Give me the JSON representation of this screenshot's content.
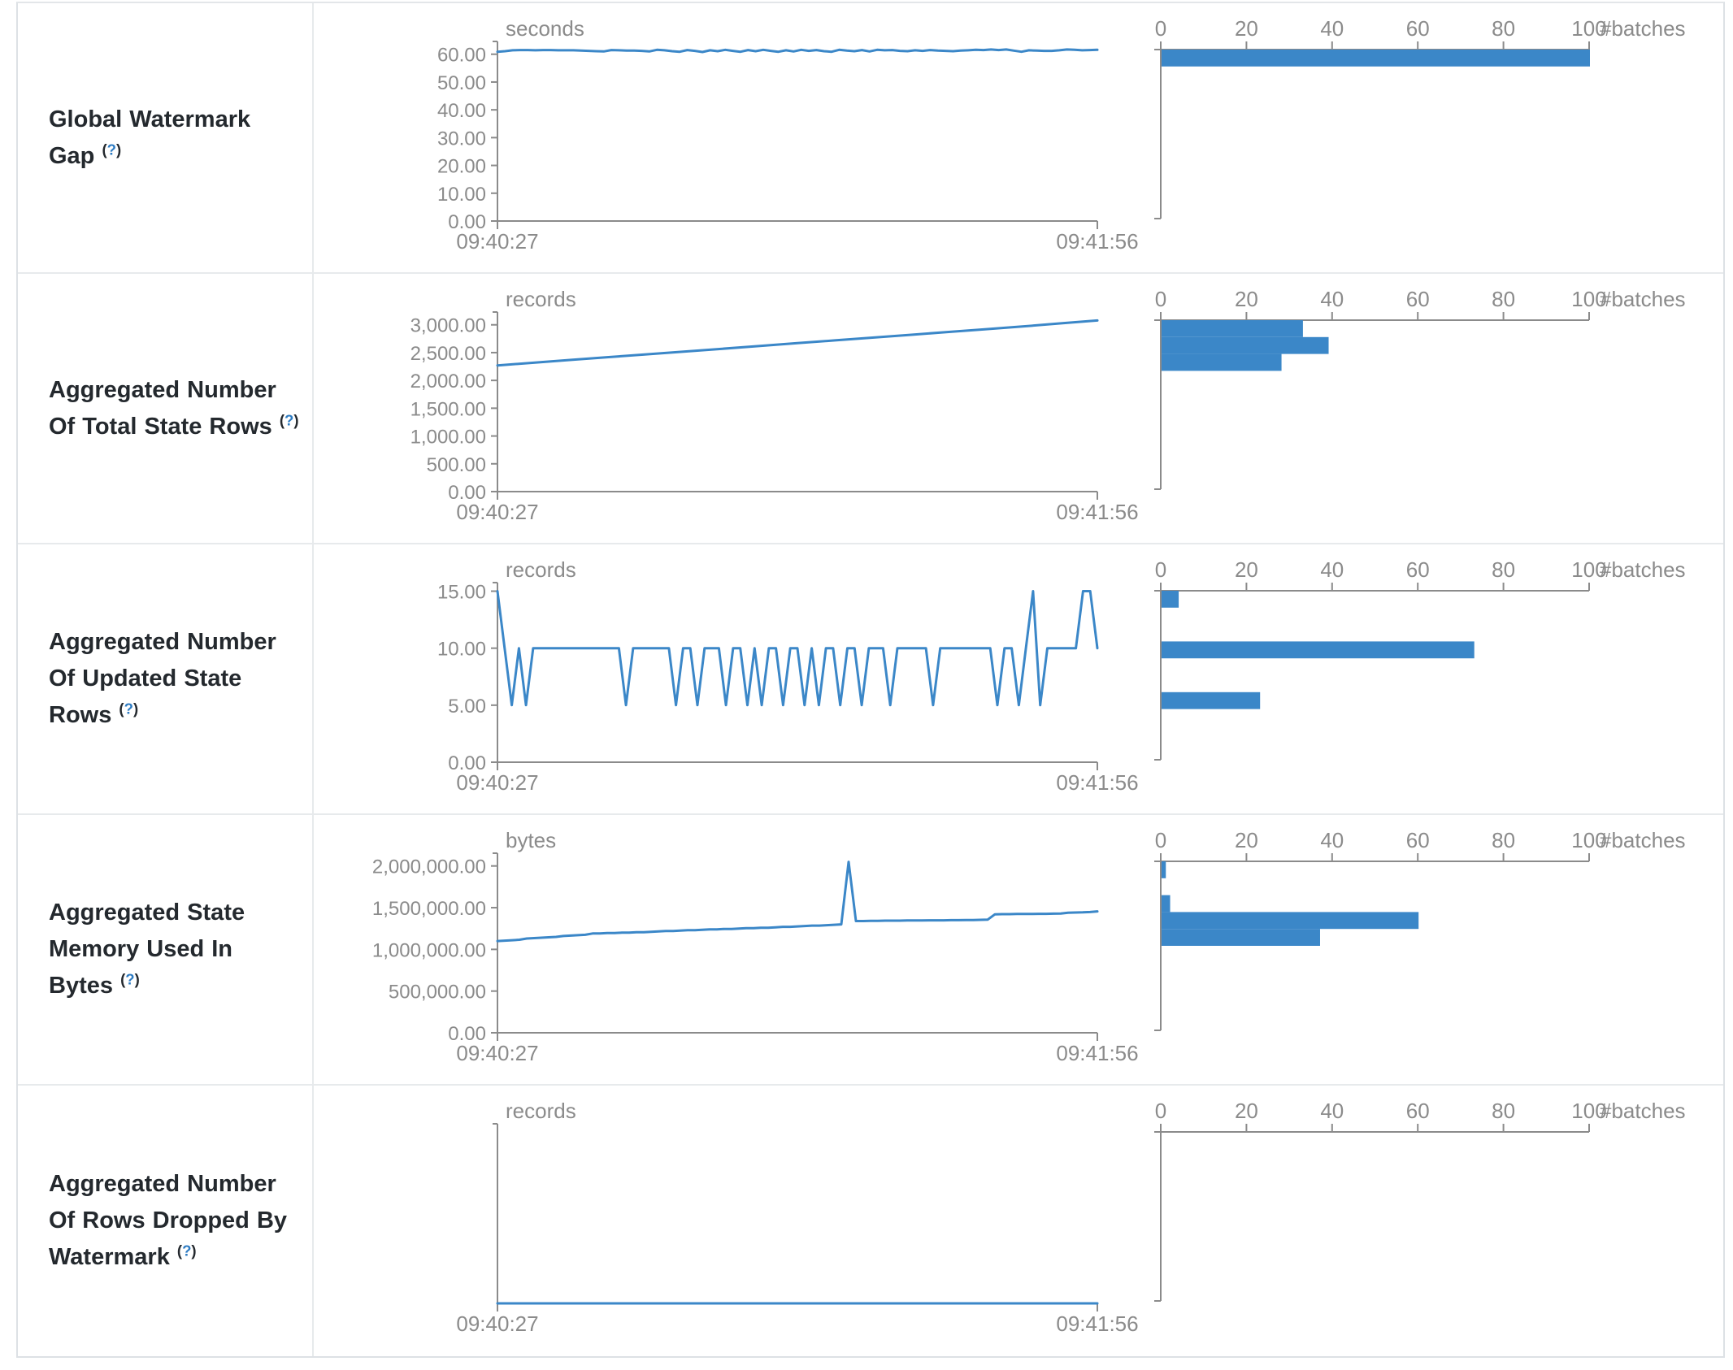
{
  "colors": {
    "line": "#3b87c8",
    "bar": "#3b87c8",
    "axis": "#8b8b8b",
    "tick_text": "#8b8b8b",
    "label_text": "#24292e",
    "help_link": "#2e7cc3",
    "border": "#e7eaec",
    "background": "#ffffff"
  },
  "help": {
    "open": "(",
    "q": "?",
    "close": ")"
  },
  "x_axis": {
    "start": "09:40:27",
    "end": "09:41:56"
  },
  "hist_axis": {
    "ticks": [
      0,
      20,
      40,
      60,
      80,
      100
    ],
    "label": "#batches",
    "max": 100
  },
  "chart_data": [
    {
      "row_label": "Global Watermark Gap",
      "timeline": {
        "type": "line",
        "unit": "seconds",
        "ylim": [
          0,
          64.6
        ],
        "x_range": [
          "09:40:27",
          "09:41:56"
        ],
        "y_ticks": [
          {
            "v": 60,
            "label": "60.00"
          },
          {
            "v": 50,
            "label": "50.00"
          },
          {
            "v": 40,
            "label": "40.00"
          },
          {
            "v": 30,
            "label": "30.00"
          },
          {
            "v": 20,
            "label": "20.00"
          },
          {
            "v": 10,
            "label": "10.00"
          },
          {
            "v": 0,
            "label": "0.00"
          }
        ],
        "values": [
          60.9,
          61.1,
          61.4,
          61.5,
          61.5,
          61.4,
          61.5,
          61.5,
          61.4,
          61.4,
          61.4,
          61.3,
          61.2,
          61.1,
          61.0,
          61.5,
          61.4,
          61.3,
          61.3,
          61.2,
          61.0,
          61.6,
          61.4,
          61.1,
          60.9,
          61.5,
          61.2,
          60.8,
          61.4,
          61.1,
          61.6,
          61.2,
          60.9,
          61.5,
          61.1,
          61.6,
          61.2,
          60.9,
          61.4,
          61.0,
          61.6,
          61.2,
          61.5,
          61.1,
          60.9,
          61.6,
          61.3,
          61.1,
          61.5,
          61.0,
          61.6,
          61.4,
          61.5,
          61.2,
          61.1,
          61.4,
          61.2,
          61.5,
          61.3,
          61.2,
          61.1,
          61.3,
          61.4,
          61.6,
          61.5,
          61.7,
          61.5,
          61.7,
          61.3,
          60.9,
          61.4,
          61.3,
          61.2,
          61.2,
          61.4,
          61.7,
          61.6,
          61.4,
          61.5,
          61.6
        ]
      },
      "histogram": {
        "type": "bar",
        "orientation": "horizontal",
        "xlabel": "#batches",
        "xlim": [
          0,
          100
        ],
        "bins": [
          {
            "lo": 58.14,
            "hi": 64.6,
            "count": 100
          }
        ]
      }
    },
    {
      "row_label": "Aggregated Number Of Total State Rows",
      "timeline": {
        "type": "line",
        "unit": "records",
        "ylim": [
          0,
          3230
        ],
        "x_range": [
          "09:40:27",
          "09:41:56"
        ],
        "y_ticks": [
          {
            "v": 3000,
            "label": "3,000.00"
          },
          {
            "v": 2500,
            "label": "2,500.00"
          },
          {
            "v": 2000,
            "label": "2,000.00"
          },
          {
            "v": 1500,
            "label": "1,500.00"
          },
          {
            "v": 1000,
            "label": "1,000.00"
          },
          {
            "v": 500,
            "label": "500.00"
          },
          {
            "v": 0,
            "label": "0.00"
          }
        ],
        "values": [
          2270,
          2320,
          2370,
          2420,
          2470,
          2520,
          2570,
          2620,
          2670,
          2720,
          2770,
          2820,
          2870,
          2920,
          2970,
          3025,
          3078
        ]
      },
      "histogram": {
        "type": "bar",
        "orientation": "horizontal",
        "xlabel": "#batches",
        "xlim": [
          0,
          100
        ],
        "bins": [
          {
            "lo": 2907,
            "hi": 3230,
            "count": 33
          },
          {
            "lo": 2584,
            "hi": 2907,
            "count": 39
          },
          {
            "lo": 2261,
            "hi": 2584,
            "count": 28
          }
        ]
      }
    },
    {
      "row_label": "Aggregated Number Of Updated State Rows",
      "timeline": {
        "type": "line",
        "unit": "records",
        "ylim": [
          0,
          15.75
        ],
        "x_range": [
          "09:40:27",
          "09:41:56"
        ],
        "y_ticks": [
          {
            "v": 15,
            "label": "15.00"
          },
          {
            "v": 10,
            "label": "10.00"
          },
          {
            "v": 5,
            "label": "5.00"
          },
          {
            "v": 0,
            "label": "0.00"
          }
        ],
        "values": [
          15,
          10,
          5,
          10,
          5,
          10,
          10,
          10,
          10,
          10,
          10,
          10,
          10,
          10,
          10,
          10,
          10,
          10,
          5,
          10,
          10,
          10,
          10,
          10,
          10,
          5,
          10,
          10,
          5,
          10,
          10,
          10,
          5,
          10,
          10,
          5,
          10,
          5,
          10,
          10,
          5,
          10,
          10,
          5,
          10,
          5,
          10,
          10,
          5,
          10,
          10,
          5,
          10,
          10,
          10,
          5,
          10,
          10,
          10,
          10,
          10,
          5,
          10,
          10,
          10,
          10,
          10,
          10,
          10,
          10,
          5,
          10,
          10,
          5,
          10,
          15,
          5,
          10,
          10,
          10,
          10,
          10,
          15,
          15,
          10
        ]
      },
      "histogram": {
        "type": "bar",
        "orientation": "horizontal",
        "xlabel": "#batches",
        "xlim": [
          0,
          100
        ],
        "bins": [
          {
            "lo": 14.175,
            "hi": 15.75,
            "count": 4
          },
          {
            "lo": 9.45,
            "hi": 11.025,
            "count": 73
          },
          {
            "lo": 4.725,
            "hi": 6.3,
            "count": 23
          }
        ]
      }
    },
    {
      "row_label": "Aggregated State Memory Used In Bytes",
      "timeline": {
        "type": "line",
        "unit": "bytes",
        "ylim": [
          0,
          2153000
        ],
        "x_range": [
          "09:40:27",
          "09:41:56"
        ],
        "y_ticks": [
          {
            "v": 2000000,
            "label": "2,000,000.00"
          },
          {
            "v": 1500000,
            "label": "1,500,000.00"
          },
          {
            "v": 1000000,
            "label": "1,000,000.00"
          },
          {
            "v": 500000,
            "label": "500,000.00"
          },
          {
            "v": 0,
            "label": "0.00"
          }
        ],
        "values": [
          1100000,
          1105000,
          1110000,
          1115000,
          1130000,
          1135000,
          1140000,
          1145000,
          1150000,
          1160000,
          1165000,
          1170000,
          1175000,
          1190000,
          1190000,
          1195000,
          1195000,
          1200000,
          1200000,
          1205000,
          1205000,
          1210000,
          1215000,
          1220000,
          1220000,
          1225000,
          1230000,
          1230000,
          1235000,
          1240000,
          1240000,
          1245000,
          1245000,
          1250000,
          1255000,
          1255000,
          1260000,
          1260000,
          1265000,
          1270000,
          1270000,
          1275000,
          1280000,
          1285000,
          1285000,
          1290000,
          1295000,
          1300000,
          2050000,
          1340000,
          1340000,
          1342000,
          1342000,
          1344000,
          1344000,
          1344000,
          1346000,
          1346000,
          1346000,
          1348000,
          1348000,
          1348000,
          1350000,
          1350000,
          1352000,
          1352000,
          1354000,
          1356000,
          1420000,
          1422000,
          1422000,
          1424000,
          1424000,
          1424000,
          1426000,
          1426000,
          1428000,
          1430000,
          1440000,
          1442000,
          1444000,
          1448000,
          1455000
        ]
      },
      "histogram": {
        "type": "bar",
        "orientation": "horizontal",
        "xlabel": "#batches",
        "xlim": [
          0,
          100
        ],
        "bins": [
          {
            "lo": 1937700,
            "hi": 2153000,
            "count": 1
          },
          {
            "lo": 1507100,
            "hi": 1722400,
            "count": 2
          },
          {
            "lo": 1291800,
            "hi": 1507100,
            "count": 60
          },
          {
            "lo": 1076500,
            "hi": 1291800,
            "count": 37
          }
        ]
      }
    },
    {
      "row_label": "Aggregated Number Of Rows Dropped By Watermark",
      "timeline": {
        "type": "line",
        "unit": "records",
        "ylim": [
          0,
          1
        ],
        "x_range": [
          "09:40:27",
          "09:41:56"
        ],
        "y_ticks": [],
        "values": [
          0,
          0,
          0,
          0,
          0,
          0,
          0,
          0,
          0,
          0
        ]
      },
      "histogram": {
        "type": "bar",
        "orientation": "horizontal",
        "xlabel": "#batches",
        "xlim": [
          0,
          100
        ],
        "bins": []
      }
    }
  ]
}
